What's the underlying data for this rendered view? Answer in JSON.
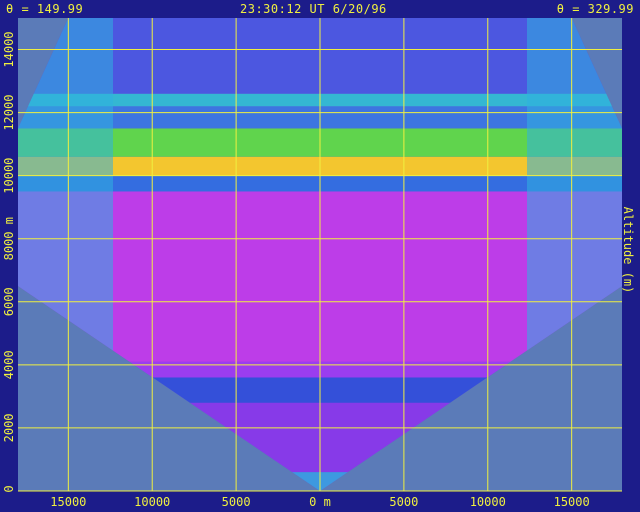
{
  "header": {
    "left": "θ = 149.99",
    "center": "23:30:12 UT   6/20/96",
    "right": "θ = 329.99"
  },
  "colors": {
    "background": "#1c1c8a",
    "plot_background": "#5b7bb8",
    "grid": "#f0f040",
    "text": "#f0f040"
  },
  "chart_data": {
    "type": "heatmap",
    "title": "",
    "xlabel": "",
    "ylabel": "Altitude (m)",
    "xlim": [
      -18000,
      18000
    ],
    "ylim": [
      0,
      15000
    ],
    "grid": true,
    "x_ticks": [
      {
        "value": -15000,
        "label": "15000"
      },
      {
        "value": -10000,
        "label": "10000"
      },
      {
        "value": -5000,
        "label": "5000"
      },
      {
        "value": 0,
        "label": "0 m"
      },
      {
        "value": 5000,
        "label": "5000"
      },
      {
        "value": 10000,
        "label": "10000"
      },
      {
        "value": 15000,
        "label": "15000"
      }
    ],
    "y_ticks": [
      {
        "value": 0,
        "label": "0"
      },
      {
        "value": 2000,
        "label": "2000"
      },
      {
        "value": 4000,
        "label": "4000"
      },
      {
        "value": 6000,
        "label": "6000"
      },
      {
        "value": 8000,
        "label": "8000 m"
      },
      {
        "value": 10000,
        "label": "10000"
      },
      {
        "value": 12000,
        "label": "12000"
      },
      {
        "value": 14000,
        "label": "14000"
      }
    ],
    "scan_angles_deg": [
      149.99,
      329.99
    ],
    "bands": [
      {
        "y_from": 0,
        "y_to": 600,
        "color": "#3aa0e0"
      },
      {
        "y_from": 600,
        "y_to": 2800,
        "color": "#8a38e8"
      },
      {
        "y_from": 2800,
        "y_to": 3600,
        "color": "#3050d8"
      },
      {
        "y_from": 3600,
        "y_to": 4100,
        "color": "#a03cf0"
      },
      {
        "y_from": 4100,
        "y_to": 9500,
        "color": "#c43ce8"
      },
      {
        "y_from": 9500,
        "y_to": 10000,
        "color": "#3070e0"
      },
      {
        "y_from": 10000,
        "y_to": 10600,
        "color": "#ffd020"
      },
      {
        "y_from": 10600,
        "y_to": 11500,
        "color": "#60e040"
      },
      {
        "y_from": 11500,
        "y_to": 12200,
        "color": "#3a78e0"
      },
      {
        "y_from": 12200,
        "y_to": 12600,
        "color": "#30c0d0"
      },
      {
        "y_from": 12600,
        "y_to": 15000,
        "color": "#4a58e0"
      }
    ]
  }
}
